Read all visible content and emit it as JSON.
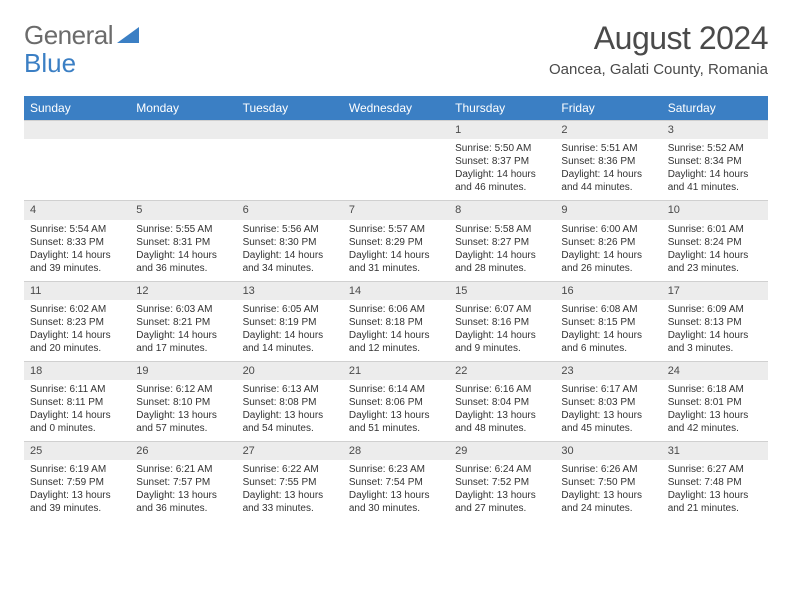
{
  "brand": {
    "part1": "General",
    "part2": "Blue"
  },
  "title": "August 2024",
  "location": "Oancea, Galati County, Romania",
  "colors": {
    "header_bg": "#3b7fc4",
    "header_text": "#ffffff",
    "daynum_bg": "#ececec",
    "text": "#333333",
    "brand_grey": "#6b6b6b",
    "brand_blue": "#3b7fc4"
  },
  "weekdays": [
    "Sunday",
    "Monday",
    "Tuesday",
    "Wednesday",
    "Thursday",
    "Friday",
    "Saturday"
  ],
  "weeks": [
    [
      null,
      null,
      null,
      null,
      {
        "d": "1",
        "sunrise": "5:50 AM",
        "sunset": "8:37 PM",
        "daylight": "Daylight: 14 hours and 46 minutes."
      },
      {
        "d": "2",
        "sunrise": "5:51 AM",
        "sunset": "8:36 PM",
        "daylight": "Daylight: 14 hours and 44 minutes."
      },
      {
        "d": "3",
        "sunrise": "5:52 AM",
        "sunset": "8:34 PM",
        "daylight": "Daylight: 14 hours and 41 minutes."
      }
    ],
    [
      {
        "d": "4",
        "sunrise": "5:54 AM",
        "sunset": "8:33 PM",
        "daylight": "Daylight: 14 hours and 39 minutes."
      },
      {
        "d": "5",
        "sunrise": "5:55 AM",
        "sunset": "8:31 PM",
        "daylight": "Daylight: 14 hours and 36 minutes."
      },
      {
        "d": "6",
        "sunrise": "5:56 AM",
        "sunset": "8:30 PM",
        "daylight": "Daylight: 14 hours and 34 minutes."
      },
      {
        "d": "7",
        "sunrise": "5:57 AM",
        "sunset": "8:29 PM",
        "daylight": "Daylight: 14 hours and 31 minutes."
      },
      {
        "d": "8",
        "sunrise": "5:58 AM",
        "sunset": "8:27 PM",
        "daylight": "Daylight: 14 hours and 28 minutes."
      },
      {
        "d": "9",
        "sunrise": "6:00 AM",
        "sunset": "8:26 PM",
        "daylight": "Daylight: 14 hours and 26 minutes."
      },
      {
        "d": "10",
        "sunrise": "6:01 AM",
        "sunset": "8:24 PM",
        "daylight": "Daylight: 14 hours and 23 minutes."
      }
    ],
    [
      {
        "d": "11",
        "sunrise": "6:02 AM",
        "sunset": "8:23 PM",
        "daylight": "Daylight: 14 hours and 20 minutes."
      },
      {
        "d": "12",
        "sunrise": "6:03 AM",
        "sunset": "8:21 PM",
        "daylight": "Daylight: 14 hours and 17 minutes."
      },
      {
        "d": "13",
        "sunrise": "6:05 AM",
        "sunset": "8:19 PM",
        "daylight": "Daylight: 14 hours and 14 minutes."
      },
      {
        "d": "14",
        "sunrise": "6:06 AM",
        "sunset": "8:18 PM",
        "daylight": "Daylight: 14 hours and 12 minutes."
      },
      {
        "d": "15",
        "sunrise": "6:07 AM",
        "sunset": "8:16 PM",
        "daylight": "Daylight: 14 hours and 9 minutes."
      },
      {
        "d": "16",
        "sunrise": "6:08 AM",
        "sunset": "8:15 PM",
        "daylight": "Daylight: 14 hours and 6 minutes."
      },
      {
        "d": "17",
        "sunrise": "6:09 AM",
        "sunset": "8:13 PM",
        "daylight": "Daylight: 14 hours and 3 minutes."
      }
    ],
    [
      {
        "d": "18",
        "sunrise": "6:11 AM",
        "sunset": "8:11 PM",
        "daylight": "Daylight: 14 hours and 0 minutes."
      },
      {
        "d": "19",
        "sunrise": "6:12 AM",
        "sunset": "8:10 PM",
        "daylight": "Daylight: 13 hours and 57 minutes."
      },
      {
        "d": "20",
        "sunrise": "6:13 AM",
        "sunset": "8:08 PM",
        "daylight": "Daylight: 13 hours and 54 minutes."
      },
      {
        "d": "21",
        "sunrise": "6:14 AM",
        "sunset": "8:06 PM",
        "daylight": "Daylight: 13 hours and 51 minutes."
      },
      {
        "d": "22",
        "sunrise": "6:16 AM",
        "sunset": "8:04 PM",
        "daylight": "Daylight: 13 hours and 48 minutes."
      },
      {
        "d": "23",
        "sunrise": "6:17 AM",
        "sunset": "8:03 PM",
        "daylight": "Daylight: 13 hours and 45 minutes."
      },
      {
        "d": "24",
        "sunrise": "6:18 AM",
        "sunset": "8:01 PM",
        "daylight": "Daylight: 13 hours and 42 minutes."
      }
    ],
    [
      {
        "d": "25",
        "sunrise": "6:19 AM",
        "sunset": "7:59 PM",
        "daylight": "Daylight: 13 hours and 39 minutes."
      },
      {
        "d": "26",
        "sunrise": "6:21 AM",
        "sunset": "7:57 PM",
        "daylight": "Daylight: 13 hours and 36 minutes."
      },
      {
        "d": "27",
        "sunrise": "6:22 AM",
        "sunset": "7:55 PM",
        "daylight": "Daylight: 13 hours and 33 minutes."
      },
      {
        "d": "28",
        "sunrise": "6:23 AM",
        "sunset": "7:54 PM",
        "daylight": "Daylight: 13 hours and 30 minutes."
      },
      {
        "d": "29",
        "sunrise": "6:24 AM",
        "sunset": "7:52 PM",
        "daylight": "Daylight: 13 hours and 27 minutes."
      },
      {
        "d": "30",
        "sunrise": "6:26 AM",
        "sunset": "7:50 PM",
        "daylight": "Daylight: 13 hours and 24 minutes."
      },
      {
        "d": "31",
        "sunrise": "6:27 AM",
        "sunset": "7:48 PM",
        "daylight": "Daylight: 13 hours and 21 minutes."
      }
    ]
  ]
}
